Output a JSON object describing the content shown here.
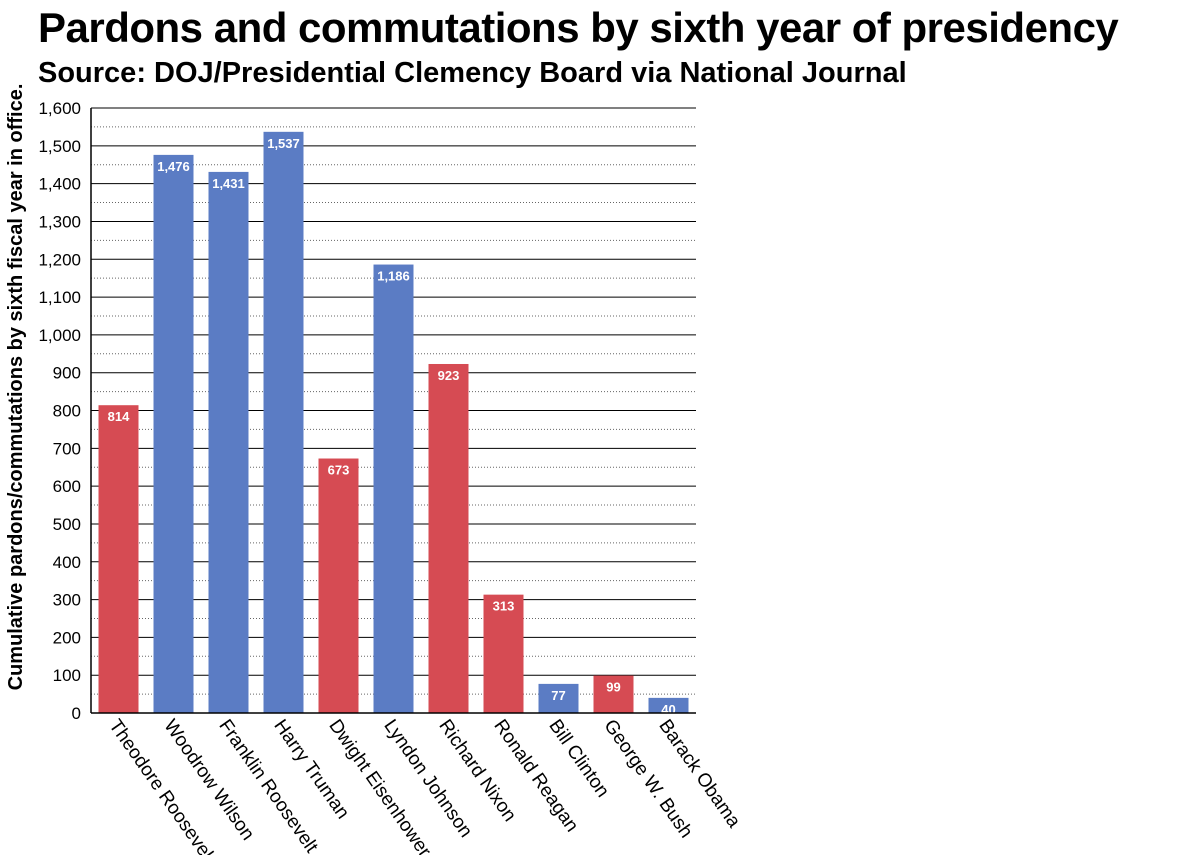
{
  "colors": {
    "democrat": "#5b7cc4",
    "republican": "#d64b53"
  },
  "chart_data": {
    "type": "bar",
    "title": "Pardons and commutations by sixth year of presidency",
    "subtitle": "Source: DOJ/Presidential Clemency Board via National Journal",
    "ylabel": "Cumulative pardons/commutations by sixth fiscal year in office.",
    "xlabel": "",
    "ylim": [
      0,
      1600
    ],
    "yticks": [
      0,
      100,
      200,
      300,
      400,
      500,
      600,
      700,
      800,
      900,
      1000,
      1100,
      1200,
      1300,
      1400,
      1500,
      1600
    ],
    "ytick_labels": [
      "0",
      "100",
      "200",
      "300",
      "400",
      "500",
      "600",
      "700",
      "800",
      "900",
      "1,000",
      "1,100",
      "1,200",
      "1,300",
      "1,400",
      "1,500",
      "1,600"
    ],
    "grid": true,
    "categories": [
      "Theodore Roosevelt",
      "Woodrow Wilson",
      "Franklin Roosevelt",
      "Harry Truman",
      "Dwight Eisenhower",
      "Lyndon Johnson",
      "Richard Nixon",
      "Ronald Reagan",
      "Bill Clinton",
      "George W. Bush",
      "Barack Obama"
    ],
    "values": [
      814,
      1476,
      1431,
      1537,
      673,
      1186,
      923,
      313,
      77,
      99,
      40
    ],
    "value_labels": [
      "814",
      "1,476",
      "1,431",
      "1,537",
      "673",
      "1,186",
      "923",
      "313",
      "77",
      "99",
      "40"
    ],
    "bar_colors": [
      "#d64b53",
      "#5b7cc4",
      "#5b7cc4",
      "#5b7cc4",
      "#d64b53",
      "#5b7cc4",
      "#d64b53",
      "#d64b53",
      "#5b7cc4",
      "#d64b53",
      "#5b7cc4"
    ]
  }
}
